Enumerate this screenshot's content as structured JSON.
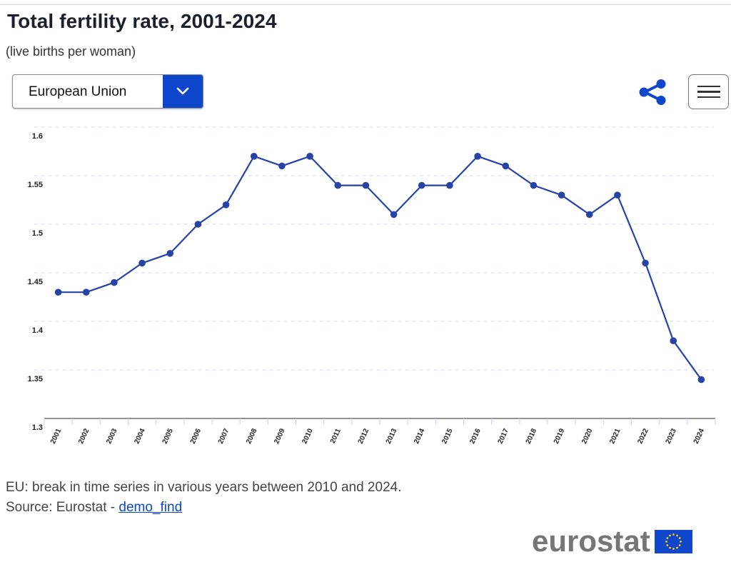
{
  "header": {
    "title": "Total fertility rate, 2001-2024",
    "subtitle": "(live births per woman)"
  },
  "controls": {
    "geo_select_value": "European Union",
    "dropdown_icon": "chevron-down-icon",
    "share_icon": "share-icon",
    "menu_icon": "hamburger-menu-icon"
  },
  "colors": {
    "accent": "#0e47cb",
    "series": "#2743a8",
    "gridline": "#dde6f5",
    "logo_grey": "#75767a",
    "flag_star": "#ffcc00"
  },
  "chart_data": {
    "type": "line",
    "title": "Total fertility rate, 2001-2024",
    "subtitle": "(live births per woman)",
    "xlabel": "",
    "ylabel": "",
    "ylim": [
      1.3,
      1.6
    ],
    "yticks": [
      "1.3",
      "1.35",
      "1.4",
      "1.45",
      "1.5",
      "1.55",
      "1.6"
    ],
    "grid": true,
    "legend": "none",
    "categories": [
      "2001",
      "2002",
      "2003",
      "2004",
      "2005",
      "2006",
      "2007",
      "2008",
      "2009",
      "2010",
      "2011",
      "2012",
      "2013",
      "2014",
      "2015",
      "2016",
      "2017",
      "2018",
      "2019",
      "2020",
      "2021",
      "2022",
      "2023",
      "2024"
    ],
    "series": [
      {
        "name": "European Union",
        "values": [
          1.43,
          1.43,
          1.44,
          1.46,
          1.47,
          1.5,
          1.52,
          1.57,
          1.56,
          1.57,
          1.54,
          1.54,
          1.51,
          1.54,
          1.54,
          1.57,
          1.56,
          1.54,
          1.53,
          1.51,
          1.53,
          1.46,
          1.38,
          1.34
        ]
      }
    ]
  },
  "footer": {
    "note": "EU: break in time series in various years between 2010 and 2024.",
    "source_prefix": "Source: Eurostat - ",
    "source_link": "demo_find",
    "logo_text": "eurostat"
  }
}
